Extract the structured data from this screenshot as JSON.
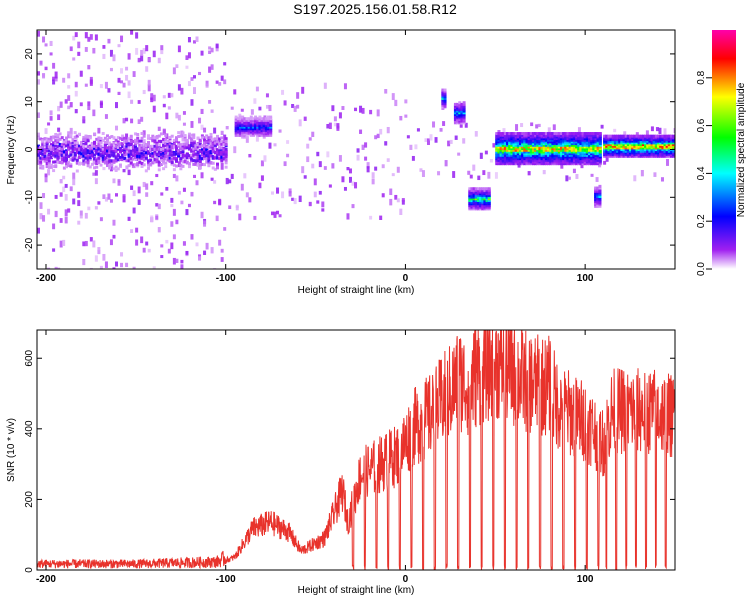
{
  "title": "S197.2025.156.01.58.R12",
  "colors": {
    "snr_line": "#e8322b",
    "axis": "#000000",
    "colormap": [
      "#ffffff",
      "#a020f0",
      "#0000ff",
      "#00ffff",
      "#00ff00",
      "#ffff00",
      "#ff0000",
      "#ff00aa"
    ]
  },
  "chart_data": [
    {
      "type": "heatmap",
      "xlabel": "Height of straight line (km)",
      "ylabel": "Frequency (Hz)",
      "xlim": [
        -205,
        150
      ],
      "ylim": [
        -25,
        25
      ],
      "xticks": [
        -200,
        -100,
        0,
        100
      ],
      "yticks": [
        -20,
        -10,
        0,
        10,
        20
      ],
      "colorbar": {
        "label": "Normalized spectral amplitude",
        "range": [
          0,
          1
        ],
        "ticks": [
          "0.0",
          "0.2",
          "0.4",
          "0.6",
          "0.8"
        ]
      },
      "features": [
        {
          "x_range": [
            -205,
            -100
          ],
          "freq": 0,
          "amplitude": 0.2
        },
        {
          "x_range": [
            -95,
            -75
          ],
          "freq": 5,
          "amplitude": 0.3
        },
        {
          "x_range": [
            20,
            22
          ],
          "freq": 11,
          "amplitude": 0.4
        },
        {
          "x_range": [
            27,
            33
          ],
          "freq": 8,
          "amplitude": 0.45
        },
        {
          "x_range": [
            35,
            47
          ],
          "freq": -10,
          "amplitude": 0.6
        },
        {
          "x_range": [
            50,
            108
          ],
          "freq": 0.5,
          "amplitude": 0.85
        },
        {
          "x_range": [
            105,
            108
          ],
          "freq": -9.5,
          "amplitude": 0.4
        },
        {
          "x_range": [
            110,
            150
          ],
          "freq": 1,
          "amplitude": 0.9
        }
      ]
    },
    {
      "type": "line",
      "xlabel": "Height of straight line (km)",
      "ylabel": "SNR (10 * v/v)",
      "xlim": [
        -205,
        150
      ],
      "ylim": [
        0,
        680
      ],
      "xticks": [
        -200,
        -100,
        0,
        100
      ],
      "yticks": [
        0,
        200,
        400,
        600
      ],
      "series": [
        {
          "x": [
            -205,
            -150,
            -105,
            -95,
            -85,
            -75,
            -65,
            -58,
            -45,
            -35,
            -32,
            -25,
            -15,
            -5,
            0,
            5,
            10,
            15,
            20,
            25,
            30,
            35,
            40,
            45,
            50,
            55,
            60,
            65,
            70,
            75,
            80,
            85,
            90,
            95,
            100,
            105,
            110,
            115,
            120,
            130,
            140,
            150
          ],
          "y": [
            15,
            15,
            20,
            40,
            130,
            150,
            120,
            60,
            100,
            250,
            150,
            300,
            330,
            360,
            400,
            450,
            470,
            490,
            530,
            560,
            600,
            580,
            620,
            640,
            650,
            640,
            620,
            600,
            590,
            580,
            580,
            520,
            500,
            480,
            470,
            440,
            400,
            500,
            500,
            500,
            500,
            480
          ]
        }
      ]
    }
  ]
}
